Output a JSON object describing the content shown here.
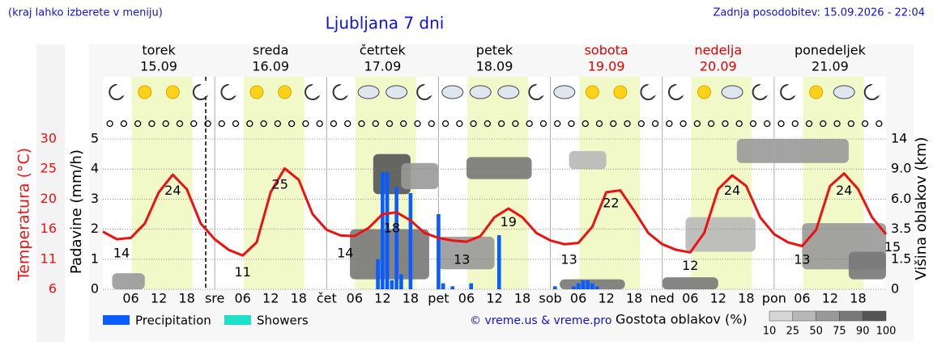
{
  "chart_data": {
    "type": "meteogram",
    "menu_note": "(kraj lahko izberete v meniju)",
    "title": "Ljubljana 7 dni",
    "updated": "Zadnja posodobitev: 15.09.2026 - 22:04",
    "days": [
      {
        "name": "torek",
        "date": "15.09",
        "color": "#000000"
      },
      {
        "name": "sreda",
        "date": "16.09",
        "color": "#000000"
      },
      {
        "name": "četrtek",
        "date": "17.09",
        "color": "#000000"
      },
      {
        "name": "petek",
        "date": "18.09",
        "color": "#000000"
      },
      {
        "name": "sobota",
        "date": "19.09",
        "color": "#e00000"
      },
      {
        "name": "nedelja",
        "date": "20.09",
        "color": "#e00000"
      },
      {
        "name": "ponedeljek",
        "date": "21.09",
        "color": "#000000"
      }
    ],
    "xlim": [
      0,
      168
    ],
    "xticks": [
      {
        "value": 6,
        "label": "06"
      },
      {
        "value": 12,
        "label": "12"
      },
      18,
      {
        "value": 24,
        "label": "sre"
      },
      {
        "value": 30,
        "label": "06"
      },
      {
        "value": 36,
        "label": "12"
      },
      {
        "value": 42,
        "label": "18"
      },
      {
        "value": 48,
        "label": "čet"
      },
      {
        "value": 54,
        "label": "06"
      },
      {
        "value": 60,
        "label": "12"
      },
      {
        "value": 66,
        "label": "18"
      },
      {
        "value": 72,
        "label": "pet"
      },
      {
        "value": 78,
        "label": "06"
      },
      {
        "value": 84,
        "label": "12"
      },
      {
        "value": 90,
        "label": "18"
      },
      {
        "value": 96,
        "label": "sob"
      },
      {
        "value": 102,
        "label": "06"
      },
      {
        "value": 108,
        "label": "12"
      },
      {
        "value": 114,
        "label": "18"
      },
      {
        "value": 120,
        "label": "ned"
      },
      {
        "value": 126,
        "label": "06"
      },
      {
        "value": 132,
        "label": "12"
      },
      {
        "value": 138,
        "label": "18"
      },
      {
        "value": 144,
        "label": "pon"
      },
      {
        "value": 150,
        "label": "06"
      },
      {
        "value": 156,
        "label": "12"
      },
      {
        "value": 162,
        "label": "18"
      }
    ],
    "day_boundaries": [
      24,
      48,
      72,
      96,
      120,
      144
    ],
    "now": 22.07,
    "temp_axis_label": "Temperatura (°C)",
    "temp_color": "#ee1111",
    "ylim": [
      6,
      30
    ],
    "yticks": [
      6,
      {
        "value": 10.8,
        "label": "11"
      },
      {
        "value": 15.6,
        "label": "16"
      },
      {
        "value": 20.4,
        "label": "20"
      },
      {
        "value": 25.2,
        "label": "25"
      },
      30
    ],
    "precip_axis_label": "Padavine (mm/h)",
    "precip_lim": [
      0,
      5
    ],
    "precip_ticks": [
      0,
      1,
      2,
      3,
      4,
      5
    ],
    "grid": true,
    "cloud_axis_label": "Višina oblakov (km)",
    "cloud_ticks": [
      0,
      1.5,
      3.5,
      {
        "value": 6,
        "label": "6.0"
      },
      {
        "value": 9,
        "label": "9.0"
      },
      14
    ],
    "temperature": {
      "x": [
        0,
        3,
        6,
        9,
        12,
        15,
        18,
        21,
        24,
        27,
        30,
        33,
        36,
        39,
        42,
        45,
        48,
        51,
        54,
        57,
        60,
        63,
        66,
        69,
        72,
        75,
        78,
        81,
        84,
        87,
        90,
        93,
        96,
        99,
        102,
        105,
        108,
        111,
        114,
        117,
        120,
        123,
        126,
        129,
        132,
        135,
        138,
        141,
        144,
        147,
        150,
        153,
        156,
        159,
        162,
        165,
        168
      ],
      "values": [
        15.2,
        14.0,
        14.2,
        16.5,
        21.5,
        24.3,
        22.0,
        16.5,
        14.0,
        12.3,
        11.4,
        13.5,
        21.5,
        25.3,
        23.5,
        18.0,
        15.5,
        14.6,
        14.5,
        15.8,
        18.0,
        18.3,
        17.0,
        15.0,
        14.2,
        13.8,
        13.6,
        14.5,
        17.5,
        18.9,
        17.5,
        15.0,
        13.8,
        13.2,
        13.4,
        16.0,
        21.5,
        21.8,
        18.5,
        15.0,
        13.2,
        12.3,
        11.9,
        15.0,
        22.0,
        24.2,
        22.5,
        17.5,
        14.8,
        13.5,
        12.9,
        15.5,
        22.5,
        24.5,
        22.0,
        17.5,
        14.8
      ]
    },
    "extremes": {
      "x": [
        4,
        15,
        30,
        38,
        52,
        62,
        77,
        87,
        100,
        109,
        126,
        135,
        150,
        159,
        168
      ],
      "values": [
        14,
        24,
        11,
        25,
        14,
        18,
        13,
        19,
        13,
        22,
        12,
        24,
        13,
        24,
        15
      ]
    },
    "precipitation": {
      "x": [
        59,
        60,
        61,
        62,
        63,
        64,
        66,
        72,
        73,
        75,
        79,
        85,
        97,
        101,
        102,
        103,
        104,
        105,
        106
      ],
      "values": [
        1.0,
        3.9,
        3.9,
        0.3,
        3.4,
        0.5,
        3.2,
        2.5,
        0.2,
        0.1,
        0.2,
        1.8,
        0.1,
        0.1,
        0.2,
        0.3,
        0.3,
        0.2,
        0.1
      ]
    },
    "legend": [
      {
        "name": "Precipitation",
        "color": "#0a5cff"
      },
      {
        "name": "Showers",
        "color": "#1de0c8"
      }
    ],
    "credit": "© vreme.us & vreme.pro",
    "cloud_legend": {
      "title": "Gostota oblakov (%)",
      "levels": [
        10,
        25,
        50,
        75,
        90,
        100
      ],
      "colors": [
        "#d6d6d6",
        "#b8b8b8",
        "#999999",
        "#787878",
        "#555555"
      ]
    },
    "clouds": [
      {
        "x": [
          2,
          9
        ],
        "height": [
          0,
          0.8
        ],
        "density": 50
      },
      {
        "x": [
          53,
          70
        ],
        "height": [
          0.5,
          3.5
        ],
        "density": 75
      },
      {
        "x": [
          58,
          66
        ],
        "height": [
          6.5,
          11.5
        ],
        "density": 90
      },
      {
        "x": [
          64,
          72
        ],
        "height": [
          7,
          10
        ],
        "density": 50
      },
      {
        "x": [
          72,
          84
        ],
        "height": [
          1,
          3
        ],
        "density": 50
      },
      {
        "x": [
          78,
          92
        ],
        "height": [
          8,
          11
        ],
        "density": 75
      },
      {
        "x": [
          98,
          112
        ],
        "height": [
          0,
          0.5
        ],
        "density": 75
      },
      {
        "x": [
          100,
          108
        ],
        "height": [
          9,
          12
        ],
        "density": 25
      },
      {
        "x": [
          120,
          132
        ],
        "height": [
          0,
          0.6
        ],
        "density": 75
      },
      {
        "x": [
          125,
          140
        ],
        "height": [
          2,
          4.5
        ],
        "density": 25
      },
      {
        "x": [
          136,
          160
        ],
        "height": [
          10,
          14
        ],
        "density": 50
      },
      {
        "x": [
          150,
          168
        ],
        "height": [
          1,
          4
        ],
        "density": 50
      },
      {
        "x": [
          160,
          168
        ],
        "height": [
          0.5,
          2
        ],
        "density": 75
      }
    ]
  }
}
